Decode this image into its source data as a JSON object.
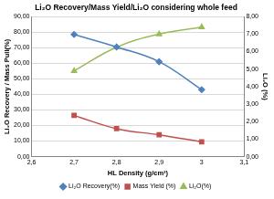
{
  "chart_data": {
    "type": "line",
    "title": "Li₂O Recovery/Mass Yield/Li₂O considering whole feed",
    "x_label": "HL Density (g/cm³)",
    "y_label": "Li₂O Recovery / Mass Pull(%)",
    "y2_label": "Li₂O (%)",
    "x": [
      2.7,
      2.8,
      2.9,
      3.0
    ],
    "series": [
      {
        "name": "Li₂O Recovery(%)",
        "color": "#4f81bd",
        "marker": "diamond",
        "values": [
          78.5,
          70.5,
          61,
          43
        ]
      },
      {
        "name": "Mass Yield (%)",
        "color": "#c0504d",
        "marker": "square",
        "values": [
          26.5,
          18,
          14,
          9.5
        ]
      },
      {
        "name": "Li₂O(%)",
        "color": "#9bbb59",
        "marker": "triangle",
        "axis": "y2",
        "values": [
          4.9,
          6.25,
          7.0,
          7.4
        ]
      }
    ],
    "xlim": [
      2.6,
      3.1
    ],
    "xticks": [
      {
        "value": 2.6,
        "label": "2,6"
      },
      {
        "value": 2.7,
        "label": "2,7"
      },
      {
        "value": 2.8,
        "label": "2,8"
      },
      {
        "value": 2.9,
        "label": "2,9"
      },
      {
        "value": 3.0,
        "label": "3"
      },
      {
        "value": 3.1,
        "label": "3,1"
      }
    ],
    "ylim": [
      0,
      90
    ],
    "yticks": [
      {
        "value": 0,
        "label": "0,00"
      },
      {
        "value": 10,
        "label": "10,00"
      },
      {
        "value": 20,
        "label": "20,00"
      },
      {
        "value": 30,
        "label": "30,00"
      },
      {
        "value": 40,
        "label": "40,00"
      },
      {
        "value": 50,
        "label": "50,00"
      },
      {
        "value": 60,
        "label": "60,00"
      },
      {
        "value": 70,
        "label": "70,00"
      },
      {
        "value": 80,
        "label": "80,00"
      },
      {
        "value": 90,
        "label": "90,00"
      }
    ],
    "y2lim": [
      0,
      8
    ],
    "y2ticks": [
      {
        "value": 0,
        "label": "0,00"
      },
      {
        "value": 1,
        "label": "1,00"
      },
      {
        "value": 2,
        "label": "2,00"
      },
      {
        "value": 3,
        "label": "3,00"
      },
      {
        "value": 4,
        "label": "4,00"
      },
      {
        "value": 5,
        "label": "5,00"
      },
      {
        "value": 6,
        "label": "6,00"
      },
      {
        "value": 7,
        "label": "7,00"
      },
      {
        "value": 8,
        "label": "8,00"
      }
    ],
    "grid": true,
    "legend": "bottom"
  }
}
